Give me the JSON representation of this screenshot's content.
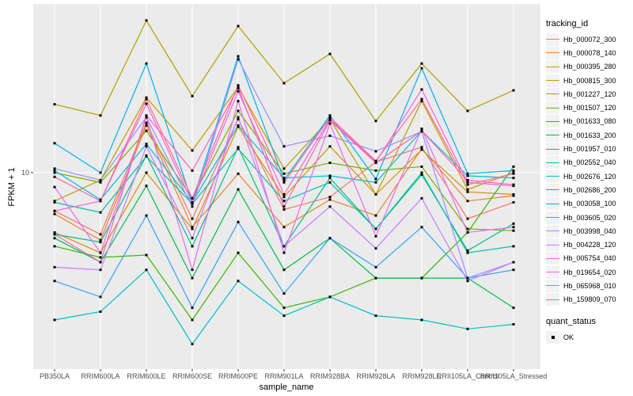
{
  "figure": {
    "background": "#FFFFFF",
    "panel_background": "#EBEBEB",
    "grid_color": "#FFFFFF",
    "axis_text_color": "#4D4D4D",
    "marker_color": "#000000"
  },
  "y_axis": {
    "title": "FPKM + 1",
    "tick_label": "10",
    "scale": "log10"
  },
  "x_axis": {
    "title": "sample_name"
  },
  "legend": {
    "tracking_title": "tracking_id",
    "quant_title": "quant_status",
    "quant_items": [
      {
        "label": "OK",
        "marker": "black-square"
      }
    ]
  },
  "chart_data": {
    "type": "line",
    "title": "",
    "xlabel": "sample_name",
    "ylabel": "FPKM + 1",
    "y_scale": "log10",
    "y_ticks": [
      10
    ],
    "ylim_approx": [
      1.6,
      50
    ],
    "grid": "major-white-on-grey",
    "legend_position": "right",
    "marker": "black-square",
    "x_categories": [
      "PB350LA",
      "RRIM600LA",
      "RRIM600LE",
      "RRIM600SE",
      "RRIM600PE",
      "RRIM901LA",
      "RRIM928BA",
      "RRIM928LA",
      "RRIM928LE",
      "RRII105LA_Control",
      "RRII105LA_Stressed"
    ],
    "series": [
      {
        "name": "Hb_000072_300",
        "color": "#F8766D",
        "values": [
          6.9,
          5.5,
          16.2,
          6.4,
          16.8,
          7.0,
          7.9,
          11.1,
          12.8,
          6.4,
          7.5
        ]
      },
      {
        "name": "Hb_000078_140",
        "color": "#EA8331",
        "values": [
          6.7,
          5.2,
          15.8,
          5.9,
          9.9,
          5.9,
          7.7,
          6.6,
          12.6,
          7.6,
          8.0
        ]
      },
      {
        "name": "Hb_000395_280",
        "color": "#D89000",
        "values": [
          5.6,
          4.6,
          10.0,
          5.8,
          15.6,
          7.9,
          12.9,
          8.1,
          12.5,
          8.3,
          8.1
        ]
      },
      {
        "name": "Hb_000815_300",
        "color": "#C09B00",
        "values": [
          7.6,
          9.3,
          20.7,
          12.4,
          22.9,
          10.4,
          16.8,
          8.1,
          20.0,
          8.5,
          10.0
        ]
      },
      {
        "name": "Hb_001227_120",
        "color": "#A3A500",
        "values": [
          19.4,
          17.4,
          43.7,
          21.0,
          41.4,
          23.8,
          31.6,
          16.5,
          28.8,
          18.2,
          22.2
        ]
      },
      {
        "name": "Hb_001507_120",
        "color": "#7CAE00",
        "values": [
          10.0,
          9.1,
          15.0,
          7.8,
          18.2,
          9.9,
          11.0,
          10.2,
          10.6,
          5.8,
          5.7
        ]
      },
      {
        "name": "Hb_001633_080",
        "color": "#39B600",
        "values": [
          4.9,
          4.4,
          4.5,
          2.4,
          4.6,
          2.7,
          3.0,
          3.6,
          3.6,
          5.6,
          10.6
        ]
      },
      {
        "name": "Hb_001633_200",
        "color": "#00BB4E",
        "values": [
          5.3,
          4.2,
          8.8,
          3.6,
          8.5,
          3.9,
          5.3,
          3.6,
          3.6,
          3.6,
          2.7
        ]
      },
      {
        "name": "Hb_001957_010",
        "color": "#00BF7D",
        "values": [
          5.5,
          5.1,
          11.8,
          4.9,
          12.8,
          4.9,
          9.5,
          5.8,
          9.8,
          4.7,
          6.1
        ]
      },
      {
        "name": "Hb_002552_040",
        "color": "#00C1A3",
        "values": [
          7.5,
          6.8,
          11.7,
          7.4,
          12.6,
          7.6,
          9.1,
          5.8,
          10.0,
          4.6,
          4.9
        ]
      },
      {
        "name": "Hb_002676_120",
        "color": "#00BFC4",
        "values": [
          2.4,
          2.6,
          3.9,
          1.9,
          3.5,
          2.5,
          3.0,
          2.5,
          2.4,
          2.2,
          2.3
        ]
      },
      {
        "name": "Hb_002686_200",
        "color": "#00BAE0",
        "values": [
          10.2,
          7.7,
          13.2,
          7.5,
          15.8,
          9.5,
          9.7,
          9.1,
          15.0,
          9.7,
          9.5
        ]
      },
      {
        "name": "Hb_003058_100",
        "color": "#00B0F6",
        "values": [
          13.3,
          10.0,
          28.8,
          7.5,
          30.9,
          9.3,
          17.4,
          9.4,
          27.5,
          9.9,
          10.2
        ]
      },
      {
        "name": "Hb_003605_020",
        "color": "#35A2FF",
        "values": [
          3.5,
          3.0,
          6.6,
          2.7,
          6.2,
          3.1,
          5.3,
          4.0,
          5.9,
          3.6,
          3.9
        ]
      },
      {
        "name": "Hb_003998_040",
        "color": "#9590FF",
        "values": [
          10.4,
          9.3,
          17.1,
          7.2,
          30.0,
          12.9,
          14.3,
          12.3,
          14.9,
          3.6,
          4.2
        ]
      },
      {
        "name": "Hb_004228_120",
        "color": "#C77CFF",
        "values": [
          4.0,
          3.9,
          12.9,
          5.3,
          17.1,
          4.9,
          7.2,
          4.8,
          7.8,
          3.5,
          4.2
        ]
      },
      {
        "name": "Hb_005754_040",
        "color": "#E76BF3",
        "values": [
          8.7,
          4.6,
          17.1,
          3.9,
          20.0,
          4.6,
          16.1,
          5.4,
          15.3,
          5.6,
          5.9
        ]
      },
      {
        "name": "Hb_019654_020",
        "color": "#FA62DB",
        "values": [
          6.9,
          7.6,
          19.5,
          7.5,
          22.0,
          8.1,
          16.8,
          11.1,
          22.4,
          9.1,
          8.8
        ]
      },
      {
        "name": "Hb_065968_010",
        "color": "#FF62BC",
        "values": [
          5.5,
          4.2,
          17.4,
          10.2,
          22.7,
          7.2,
          16.6,
          11.0,
          15.0,
          9.3,
          8.9
        ]
      },
      {
        "name": "Hb_159809_070",
        "color": "#FF6A98",
        "values": [
          9.6,
          7.6,
          20.4,
          7.8,
          23.3,
          9.1,
          17.1,
          11.2,
          20.4,
          8.9,
          9.9
        ]
      }
    ]
  }
}
